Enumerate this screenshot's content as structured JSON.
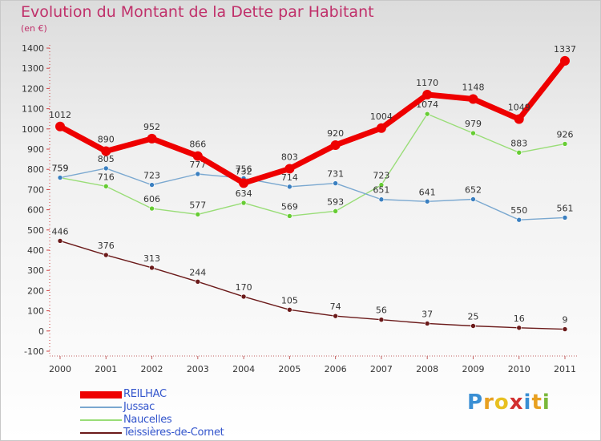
{
  "header": {
    "title": "Evolution du Montant de la Dette par Habitant",
    "unit": "(en €)"
  },
  "logo": {
    "letters": [
      "P",
      "r",
      "o",
      "x",
      "i",
      "t",
      "i"
    ],
    "colors": [
      "#3a8fd4",
      "#e8a020",
      "#e8c020",
      "#d23030",
      "#3a8fd4",
      "#e8a020",
      "#7ab83a"
    ]
  },
  "chart_data": {
    "type": "line",
    "categories": [
      "2000",
      "2001",
      "2002",
      "2003",
      "2004",
      "2005",
      "2006",
      "2007",
      "2008",
      "2009",
      "2010",
      "2011"
    ],
    "y_ticks": [
      "-100",
      "0",
      "100",
      "200",
      "300",
      "400",
      "500",
      "600",
      "700",
      "800",
      "900",
      "1000",
      "1100",
      "1200",
      "1300",
      "1400"
    ],
    "ylim": [
      -100,
      1400
    ],
    "grid": false,
    "legend_position": "bottom-left",
    "series": [
      {
        "name": "Teissières-de-Cornet",
        "color": "#6b1a1a",
        "marker": "#6b1a1a",
        "values": [
          446,
          376,
          313,
          244,
          170,
          105,
          74,
          56,
          37,
          25,
          16,
          9
        ]
      },
      {
        "name": "Naucelles",
        "color": "#99dd77",
        "marker": "#66cc33",
        "values": [
          759,
          716,
          606,
          577,
          634,
          569,
          593,
          723,
          1074,
          979,
          883,
          926
        ]
      },
      {
        "name": "Jussac",
        "color": "#7aa8d0",
        "marker": "#3a7fc0",
        "values": [
          759,
          805,
          723,
          777,
          756,
          714,
          731,
          651,
          641,
          652,
          550,
          561
        ]
      },
      {
        "name": "REILHAC",
        "color": "#ee0000",
        "marker": "#ee0000",
        "values": [
          1012,
          890,
          952,
          866,
          732,
          803,
          920,
          1004,
          1170,
          1148,
          1049,
          1337
        ]
      }
    ],
    "legend_order": [
      "REILHAC",
      "Jussac",
      "Naucelles",
      "Teissières-de-Cornet"
    ]
  }
}
